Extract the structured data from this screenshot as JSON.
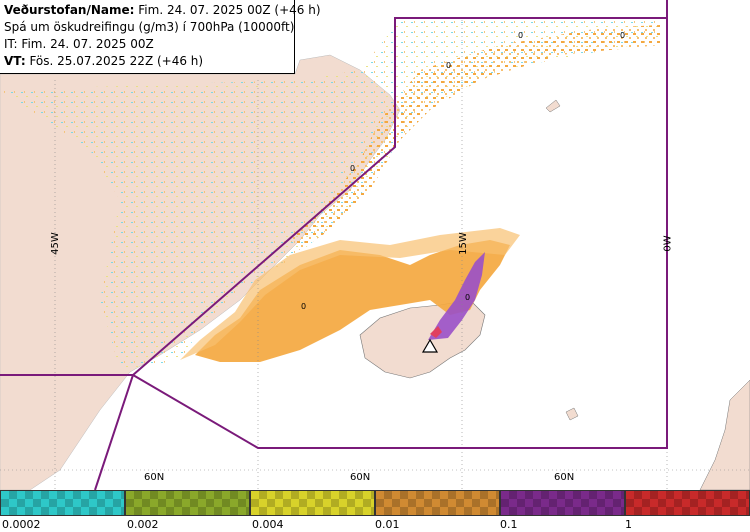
{
  "info": {
    "line1_label": "Veðurstofan/Name:",
    "line1_value": "Fim. 24. 07. 2025 00Z (+46 h)",
    "line2": "Spá um öskudreifingu (g/m3) í 700hPa (10000ft)",
    "line3": "IT: Fim. 24. 07. 2025 00Z",
    "line4_label": "VT:",
    "line4_value": "Fös. 25.07.2025 22Z (+46 h)"
  },
  "grid_labels": {
    "lon_45w": "45W",
    "lon_15w": "15W",
    "lon_0w": "0W",
    "lat_60n_a": "60N",
    "lat_60n_b": "60N",
    "lat_60n_c": "60N"
  },
  "contour_labels": [
    "0",
    "0",
    "0",
    "0",
    "0",
    "0"
  ],
  "legend": {
    "ticks": [
      "0.0002",
      "0.002",
      "0.004",
      "0.01",
      "0.1",
      "1"
    ],
    "colors": [
      "#2ec8c8",
      "#8aa82a",
      "#d8d22a",
      "#d08a32",
      "#7a2a8a",
      "#c82a2a"
    ]
  },
  "colors": {
    "land": "#f2dcd0",
    "sea": "#ffffff",
    "boundary": "#7a1a7a",
    "ash_light": "#f8c070",
    "ash_orange": "#f4a840",
    "ash_purple": "#9a50c8"
  }
}
